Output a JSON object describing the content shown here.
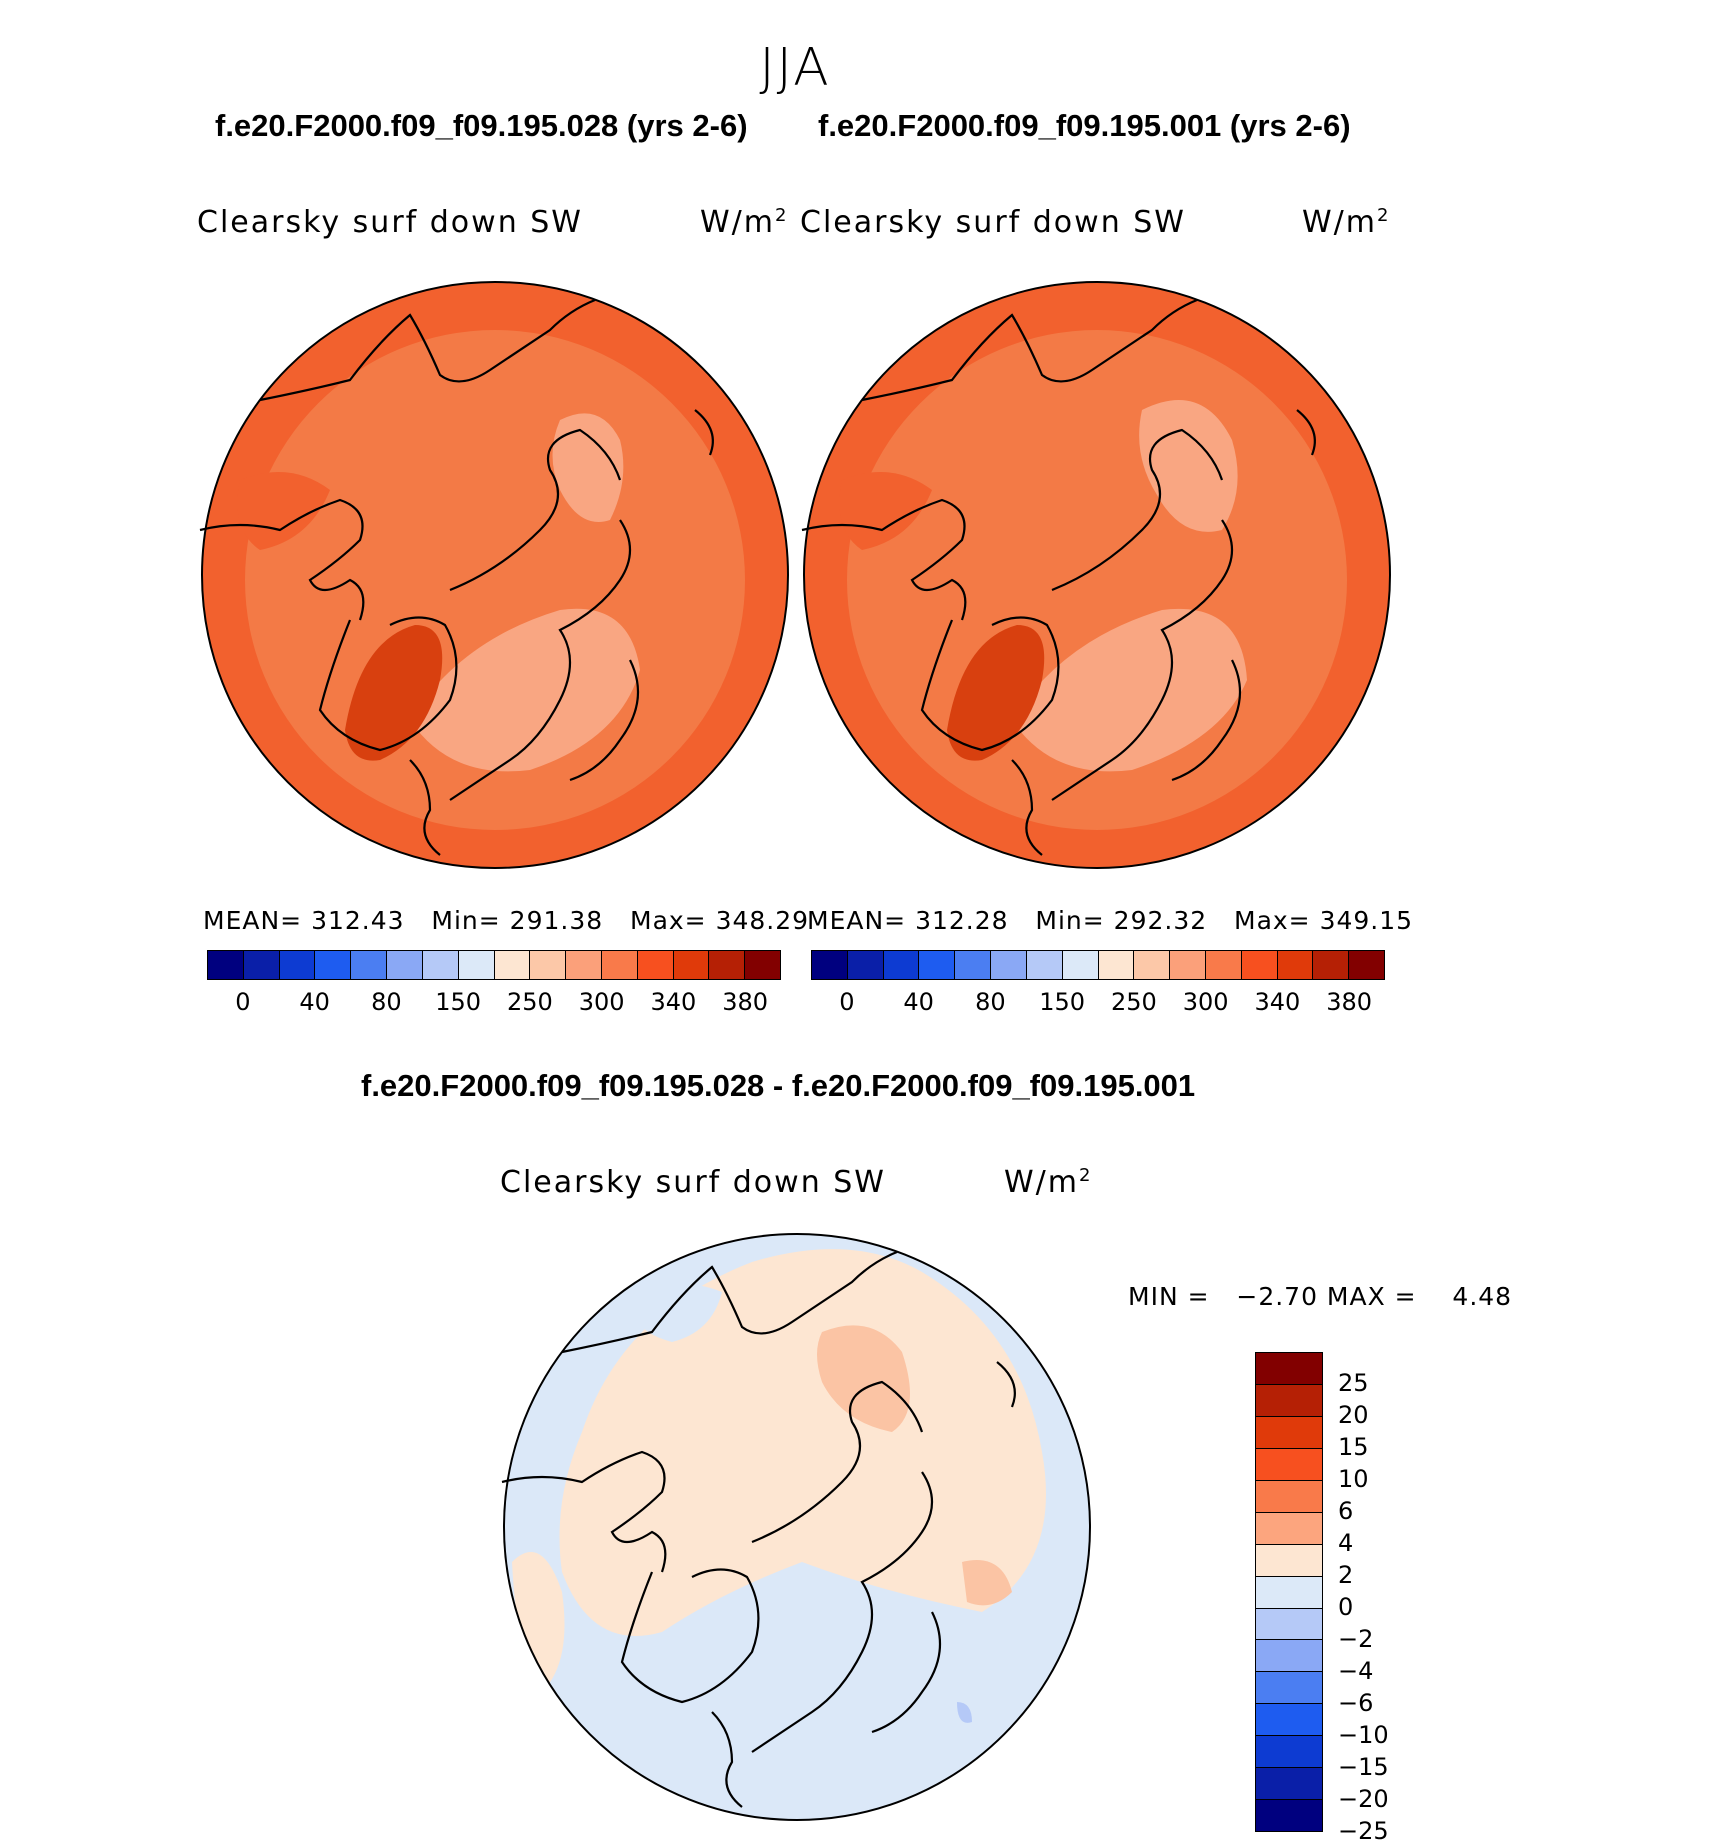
{
  "season": "JJA",
  "panels": [
    {
      "case": "f.e20.F2000.f09_f09.195.028 (yrs 2-6)",
      "title": "Clearsky surf down SW",
      "units": "W/m",
      "units_sup": "2",
      "mean_label": "MEAN=",
      "mean": "312.43",
      "min_label": "Min=",
      "min": "291.38",
      "max_label": "Max=",
      "max": "348.29"
    },
    {
      "case": "f.e20.F2000.f09_f09.195.001 (yrs 2-6)",
      "title": "Clearsky surf down SW",
      "units": "W/m",
      "units_sup": "2",
      "mean_label": "MEAN=",
      "mean": "312.28",
      "min_label": "Min=",
      "min": "292.32",
      "max_label": "Max=",
      "max": "349.15"
    }
  ],
  "abs_colorbar": {
    "colors": [
      "#00007f",
      "#0a1fa8",
      "#0d3bd2",
      "#1e5cf0",
      "#4b7ef2",
      "#8aa8f5",
      "#b5c9f7",
      "#dce9f8",
      "#fde6d2",
      "#fcc8a8",
      "#fba07a",
      "#f97a4a",
      "#f7501f",
      "#e03a0a",
      "#b52005",
      "#820000"
    ],
    "ticks": [
      "0",
      "40",
      "80",
      "150",
      "250",
      "300",
      "340",
      "380"
    ]
  },
  "diff": {
    "case": "f.e20.F2000.f09_f09.195.028 - f.e20.F2000.f09_f09.195.001",
    "title": "Clearsky surf down SW",
    "units": "W/m",
    "units_sup": "2",
    "minmax": "MIN =   −2.70 MAX =    4.48"
  },
  "diff_colorbar": {
    "colors": [
      "#820000",
      "#b52005",
      "#e03a0a",
      "#f7501f",
      "#f97a4a",
      "#fca57e",
      "#fde6d2",
      "#dce9f8",
      "#b5c9f7",
      "#8aa8f5",
      "#4b7ef2",
      "#1e5cf0",
      "#0d3bd2",
      "#0a1fa8",
      "#00007f"
    ],
    "ticks": [
      "25",
      "20",
      "15",
      "10",
      "6",
      "4",
      "2",
      "0",
      "−2",
      "−4",
      "−6",
      "−10",
      "−15",
      "−20",
      "−25"
    ]
  },
  "map_colors": {
    "ocean_abs": "#f37a46",
    "outer_abs": "#f2612e",
    "low_abs": "#f9a682",
    "high_abs": "#d8400f",
    "diff_pos": "#fde6d2",
    "diff_pos2": "#fbc4a4",
    "diff_neg": "#dbe8f8",
    "diff_neg2": "#b5c9f7"
  }
}
